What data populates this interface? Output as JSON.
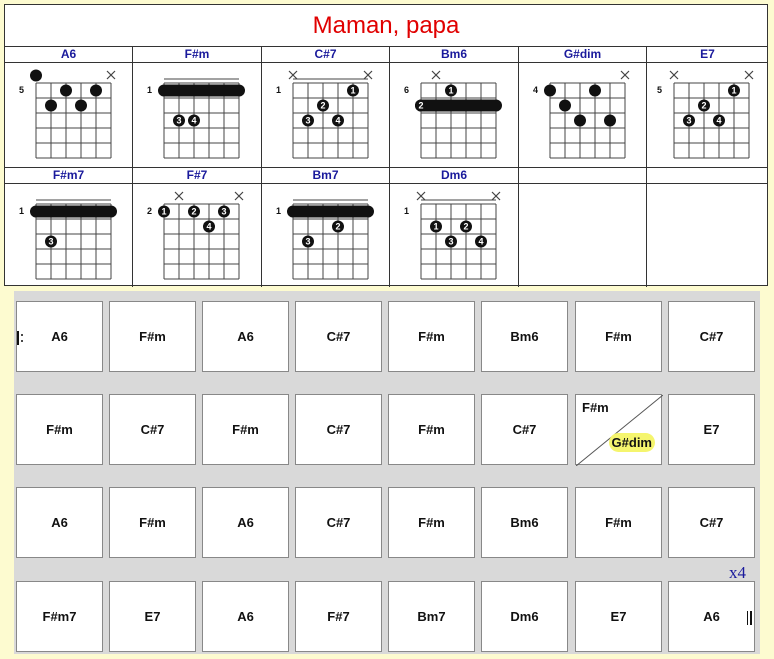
{
  "title": "Maman, papa",
  "chords": [
    {
      "name": "A6"
    },
    {
      "name": "F#m"
    },
    {
      "name": "C#7"
    },
    {
      "name": "Bm6"
    },
    {
      "name": "G#dim"
    },
    {
      "name": "E7"
    },
    {
      "name": "F#m7"
    },
    {
      "name": "F#7"
    },
    {
      "name": "Bm7"
    },
    {
      "name": "Dm6"
    },
    {
      "name": ""
    },
    {
      "name": ""
    }
  ],
  "diagrams": [
    {
      "fret": "5",
      "mute": [
        5
      ],
      "dots": [
        [
          0,
          0,
          ""
        ],
        [
          1,
          2,
          ""
        ],
        [
          2,
          1,
          ""
        ],
        [
          3,
          2,
          ""
        ],
        [
          4,
          1,
          ""
        ]
      ],
      "barre": null
    },
    {
      "fret": "1",
      "mute": [],
      "dots": [
        [
          1,
          3,
          "3"
        ],
        [
          2,
          3,
          "4"
        ]
      ],
      "barre": [
        1,
        "1",
        [
          "1",
          "1",
          "1"
        ]
      ]
    },
    {
      "fret": "1",
      "mute": [
        0,
        5
      ],
      "dots": [
        [
          1,
          3,
          "3"
        ],
        [
          2,
          2,
          "2"
        ],
        [
          3,
          3,
          "4"
        ],
        [
          4,
          1,
          "1"
        ]
      ],
      "barre": null
    },
    {
      "fret": "6",
      "mute": [
        1
      ],
      "dots": [
        [
          0,
          2,
          "2"
        ],
        [
          2,
          1,
          "1"
        ]
      ],
      "barre": [
        2,
        "3",
        [
          "3",
          "3",
          "3"
        ]
      ]
    },
    {
      "fret": "4",
      "mute": [
        5
      ],
      "dots": [
        [
          0,
          1,
          ""
        ],
        [
          1,
          2,
          ""
        ],
        [
          2,
          3,
          ""
        ],
        [
          3,
          1,
          ""
        ],
        [
          4,
          3,
          ""
        ]
      ],
      "barre": null
    },
    {
      "fret": "5",
      "mute": [
        0,
        5
      ],
      "dots": [
        [
          1,
          3,
          "3"
        ],
        [
          2,
          2,
          "2"
        ],
        [
          3,
          3,
          "4"
        ],
        [
          4,
          1,
          "1"
        ]
      ],
      "barre": null
    }
  ],
  "diagrams2": [
    {
      "fret": "1",
      "mute": [],
      "dots": [
        [
          1,
          3,
          "3"
        ]
      ],
      "barre": [
        1,
        "1",
        [
          "1",
          "1",
          "1",
          "1"
        ]
      ]
    },
    {
      "fret": "2",
      "mute": [
        1,
        5
      ],
      "dots": [
        [
          0,
          1,
          "1"
        ],
        [
          2,
          1,
          "2"
        ],
        [
          3,
          2,
          "4"
        ],
        [
          4,
          1,
          "3"
        ]
      ],
      "barre": null
    },
    {
      "fret": "1",
      "mute": [],
      "dots": [
        [
          1,
          3,
          "3"
        ],
        [
          3,
          2,
          "2"
        ]
      ],
      "barre": [
        1,
        "1",
        [
          "1",
          "1"
        ]
      ]
    },
    {
      "fret": "1",
      "mute": [
        0,
        5
      ],
      "dots": [
        [
          1,
          2,
          "1"
        ],
        [
          2,
          3,
          "3"
        ],
        [
          3,
          2,
          "2"
        ],
        [
          4,
          3,
          "4"
        ]
      ],
      "barre": null
    }
  ],
  "bars": [
    [
      "A6",
      "F#m",
      "A6",
      "C#7",
      "F#m",
      "Bm6",
      "F#m",
      "C#7"
    ],
    [
      "F#m",
      "C#7",
      "F#m",
      "C#7",
      "F#m",
      "C#7",
      "SPLIT",
      "E7"
    ],
    [
      "A6",
      "F#m",
      "A6",
      "C#7",
      "F#m",
      "Bm6",
      "F#m",
      "C#7"
    ],
    [
      "F#m7",
      "E7",
      "A6",
      "F#7",
      "Bm7",
      "Dm6",
      "E7",
      "A6"
    ]
  ],
  "split_bar": {
    "top": "F#m",
    "bottom": "G#dim"
  },
  "repeat_count": "x4"
}
